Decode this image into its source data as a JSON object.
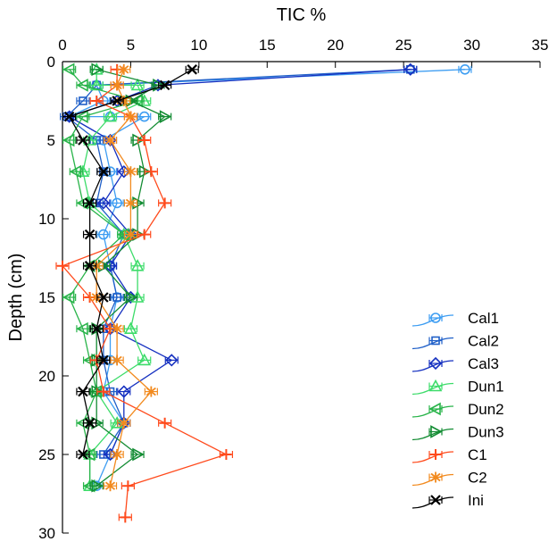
{
  "chart_data": {
    "type": "line",
    "orientation": "depth-profile",
    "title": "",
    "xlabel": "TIC %",
    "ylabel": "Depth (cm)",
    "xlim": [
      0,
      35
    ],
    "ylim": [
      0,
      30
    ],
    "x_ticks": [
      0,
      5,
      10,
      15,
      20,
      25,
      30,
      35
    ],
    "y_ticks": [
      0,
      5,
      10,
      15,
      20,
      25,
      30
    ],
    "x_axis_position": "top",
    "y_axis_inverted": true,
    "legend_position": "bottom-right",
    "series": [
      {
        "name": "Cal1",
        "color": "#3d9df2",
        "marker": "circle",
        "points": [
          [
            29.5,
            0.5
          ],
          [
            2.5,
            1.5
          ],
          [
            3.0,
            2.5
          ],
          [
            0.5,
            3.5
          ],
          [
            3.5,
            3.5
          ],
          [
            6.0,
            3.5
          ],
          [
            3.0,
            5.0
          ],
          [
            3.5,
            7.0
          ],
          [
            4.0,
            9.0
          ],
          [
            3.0,
            11.0
          ],
          [
            3.5,
            13.0
          ],
          [
            4.0,
            15.0
          ],
          [
            3.5,
            17.0
          ],
          [
            3.5,
            19.0
          ],
          [
            3.0,
            21.0
          ],
          [
            4.5,
            23.0
          ],
          [
            3.5,
            25.0
          ],
          [
            2.5,
            27.0
          ]
        ]
      },
      {
        "name": "Cal2",
        "color": "#1f5fc8",
        "marker": "square",
        "points": [
          [
            25.5,
            0.5
          ],
          [
            2.5,
            1.5
          ],
          [
            1.5,
            2.5
          ],
          [
            0.3,
            3.5
          ],
          [
            2.5,
            5.0
          ],
          [
            3.0,
            7.0
          ],
          [
            2.5,
            9.0
          ],
          [
            4.5,
            11.0
          ],
          [
            3.5,
            13.0
          ],
          [
            4.0,
            15.0
          ],
          [
            3.0,
            17.0
          ],
          [
            3.0,
            19.0
          ],
          [
            3.5,
            21.0
          ],
          [
            4.5,
            23.0
          ],
          [
            3.0,
            25.0
          ]
        ]
      },
      {
        "name": "Cal3",
        "color": "#1530c0",
        "marker": "diamond",
        "points": [
          [
            25.5,
            0.5
          ],
          [
            7.0,
            1.5
          ],
          [
            4.0,
            2.5
          ],
          [
            0.5,
            3.5
          ],
          [
            3.5,
            5.0
          ],
          [
            4.5,
            7.0
          ],
          [
            3.0,
            9.0
          ],
          [
            5.0,
            11.0
          ],
          [
            3.5,
            13.0
          ],
          [
            5.0,
            15.0
          ],
          [
            3.5,
            17.0
          ],
          [
            8.0,
            19.0
          ],
          [
            4.5,
            21.0
          ],
          [
            4.5,
            23.0
          ],
          [
            3.5,
            25.0
          ]
        ]
      },
      {
        "name": "Dun1",
        "color": "#3ddc6a",
        "marker": "triangle-up",
        "points": [
          [
            2.5,
            0.5
          ],
          [
            2.5,
            1.5
          ],
          [
            5.5,
            1.5
          ],
          [
            6.0,
            2.5
          ],
          [
            3.5,
            3.5
          ],
          [
            2.0,
            5.0
          ],
          [
            1.5,
            7.0
          ],
          [
            2.0,
            9.0
          ],
          [
            4.5,
            11.0
          ],
          [
            5.5,
            13.0
          ],
          [
            5.5,
            15.0
          ],
          [
            5.0,
            17.0
          ],
          [
            6.0,
            19.0
          ],
          [
            2.5,
            21.0
          ],
          [
            4.0,
            23.0
          ],
          [
            2.0,
            25.0
          ],
          [
            2.0,
            27.0
          ]
        ]
      },
      {
        "name": "Dun2",
        "color": "#29b44a",
        "marker": "triangle-left",
        "points": [
          [
            0.5,
            0.5
          ],
          [
            1.5,
            1.5
          ],
          [
            5.5,
            2.5
          ],
          [
            1.5,
            3.5
          ],
          [
            0.5,
            5.0
          ],
          [
            1.0,
            7.0
          ],
          [
            1.5,
            9.0
          ],
          [
            4.5,
            11.0
          ],
          [
            2.0,
            13.0
          ],
          [
            0.5,
            15.0
          ],
          [
            1.5,
            17.0
          ],
          [
            2.0,
            19.0
          ],
          [
            2.5,
            21.0
          ],
          [
            1.5,
            23.0
          ],
          [
            2.0,
            25.0
          ],
          [
            2.0,
            27.0
          ]
        ]
      },
      {
        "name": "Dun3",
        "color": "#138c33",
        "marker": "triangle-right",
        "points": [
          [
            2.5,
            0.5
          ],
          [
            7.0,
            1.5
          ],
          [
            5.0,
            2.5
          ],
          [
            7.5,
            3.5
          ],
          [
            5.5,
            5.0
          ],
          [
            6.0,
            7.0
          ],
          [
            5.5,
            9.0
          ],
          [
            5.5,
            11.0
          ],
          [
            3.0,
            13.0
          ],
          [
            5.0,
            15.0
          ],
          [
            2.5,
            17.0
          ],
          [
            2.5,
            19.0
          ],
          [
            2.5,
            21.0
          ],
          [
            2.5,
            23.0
          ],
          [
            5.5,
            25.0
          ],
          [
            2.5,
            27.0
          ]
        ]
      },
      {
        "name": "C1",
        "color": "#ff4a1c",
        "marker": "plus",
        "points": [
          [
            4.0,
            0.5
          ],
          [
            4.0,
            1.5
          ],
          [
            2.5,
            2.5
          ],
          [
            5.0,
            3.5
          ],
          [
            6.0,
            5.0
          ],
          [
            6.5,
            7.0
          ],
          [
            7.5,
            9.0
          ],
          [
            6.0,
            11.0
          ],
          [
            0.0,
            13.0
          ],
          [
            2.0,
            15.0
          ],
          [
            3.5,
            17.0
          ],
          [
            2.5,
            19.0
          ],
          [
            3.0,
            21.0
          ],
          [
            7.5,
            23.0
          ],
          [
            12.0,
            25.0
          ],
          [
            4.8,
            27.0
          ],
          [
            4.6,
            29.0
          ]
        ]
      },
      {
        "name": "C2",
        "color": "#f28a1e",
        "marker": "star",
        "points": [
          [
            4.5,
            0.5
          ],
          [
            4.0,
            1.5
          ],
          [
            4.5,
            2.5
          ],
          [
            5.0,
            3.5
          ],
          [
            3.5,
            5.0
          ],
          [
            5.0,
            7.0
          ],
          [
            5.0,
            9.0
          ],
          [
            5.0,
            11.0
          ],
          [
            2.5,
            13.0
          ],
          [
            2.5,
            15.0
          ],
          [
            4.0,
            17.0
          ],
          [
            4.0,
            19.0
          ],
          [
            6.5,
            21.0
          ],
          [
            4.5,
            23.0
          ],
          [
            4.0,
            25.0
          ],
          [
            3.5,
            27.0
          ]
        ]
      },
      {
        "name": "Ini",
        "color": "#000000",
        "marker": "x",
        "points": [
          [
            9.5,
            0.5
          ],
          [
            7.5,
            1.5
          ],
          [
            4.0,
            2.5
          ],
          [
            0.5,
            3.5
          ],
          [
            1.5,
            5.0
          ],
          [
            3.0,
            7.0
          ],
          [
            2.0,
            9.0
          ],
          [
            2.0,
            11.0
          ],
          [
            2.0,
            13.0
          ],
          [
            3.0,
            15.0
          ],
          [
            2.5,
            17.0
          ],
          [
            3.0,
            19.0
          ],
          [
            1.5,
            21.0
          ],
          [
            2.0,
            23.0
          ],
          [
            1.5,
            25.0
          ]
        ]
      }
    ]
  }
}
